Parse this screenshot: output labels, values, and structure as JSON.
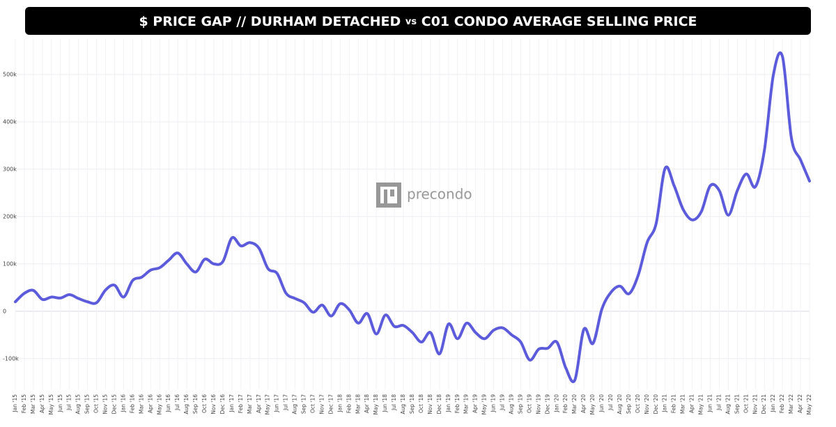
{
  "chart_data": {
    "type": "line",
    "title": "$ PRICE GAP // DURHAM DETACHED",
    "title_vs": "vs",
    "title_rest": "C01 CONDO AVERAGE SELLING PRICE",
    "watermark": "precondo",
    "categories": [
      "Jan '15",
      "Feb '15",
      "Mar '15",
      "Apr '15",
      "May '15",
      "Jun '15",
      "Jul '15",
      "Aug '15",
      "Sep '15",
      "Oct '15",
      "Nov '15",
      "Dec '15",
      "Jan '16",
      "Feb '16",
      "Mar '16",
      "Apr '16",
      "May '16",
      "Jun '16",
      "Jul '16",
      "Aug '16",
      "Sep '16",
      "Oct '16",
      "Nov '16",
      "Dec '16",
      "Jan '17",
      "Feb '17",
      "Mar '17",
      "Apr '17",
      "May '17",
      "Jun '17",
      "Jul '17",
      "Aug '17",
      "Sep '17",
      "Oct '17",
      "Nov '17",
      "Dec '17",
      "Jan '18",
      "Feb '18",
      "Mar '18",
      "Apr '18",
      "May '18",
      "Jun '18",
      "Jul '18",
      "Aug '18",
      "Sep '18",
      "Oct '18",
      "Nov '18",
      "Dec '18",
      "Jan '19",
      "Feb '19",
      "Mar '19",
      "Apr '19",
      "May '19",
      "Jun '19",
      "Jul '19",
      "Aug '19",
      "Sep '19",
      "Oct '19",
      "Nov '19",
      "Dec '19",
      "Jan '20",
      "Feb '20",
      "Mar '20",
      "Apr '20",
      "May '20",
      "Jun '20",
      "Jul '20",
      "Aug '20",
      "Sep '20",
      "Oct '20",
      "Nov '20",
      "Dec '20",
      "Jan '21",
      "Feb '21",
      "Mar '21",
      "Apr '21",
      "May '21",
      "Jun '21",
      "Jul '21",
      "Aug '21",
      "Sep '21",
      "Oct '21",
      "Nov '21",
      "Dec '21",
      "Jan '22",
      "Feb '22",
      "Mar '22",
      "Apr '22",
      "May '22"
    ],
    "values": [
      20000,
      38000,
      44000,
      25000,
      30000,
      28000,
      35000,
      27000,
      20000,
      18000,
      45000,
      55000,
      30000,
      65000,
      72000,
      87000,
      92000,
      108000,
      123000,
      100000,
      83000,
      110000,
      100000,
      105000,
      155000,
      138000,
      145000,
      133000,
      90000,
      80000,
      38000,
      27000,
      18000,
      -2000,
      13000,
      -10000,
      16000,
      3000,
      -25000,
      -5000,
      -48000,
      -8000,
      -32000,
      -30000,
      -45000,
      -65000,
      -45000,
      -90000,
      -27000,
      -58000,
      -25000,
      -45000,
      -58000,
      -40000,
      -35000,
      -50000,
      -65000,
      -103000,
      -80000,
      -78000,
      -65000,
      -120000,
      -145000,
      -38000,
      -68000,
      5000,
      40000,
      53000,
      37000,
      75000,
      145000,
      185000,
      302000,
      265000,
      215000,
      193000,
      210000,
      265000,
      255000,
      203000,
      255000,
      290000,
      263000,
      340000,
      500000,
      538000,
      365000,
      320000,
      275000
    ],
    "color": "#5b5bdb",
    "ylim": [
      -165000,
      575000
    ],
    "yticks": [
      {
        "value": -100000,
        "label": "-100k"
      },
      0,
      {
        "value": 100000,
        "label": "100k"
      },
      {
        "value": 200000,
        "label": "200k"
      },
      {
        "value": 300000,
        "label": "300k"
      },
      {
        "value": 400000,
        "label": "400k"
      },
      {
        "value": 500000,
        "label": "500k"
      }
    ],
    "grid": true
  }
}
